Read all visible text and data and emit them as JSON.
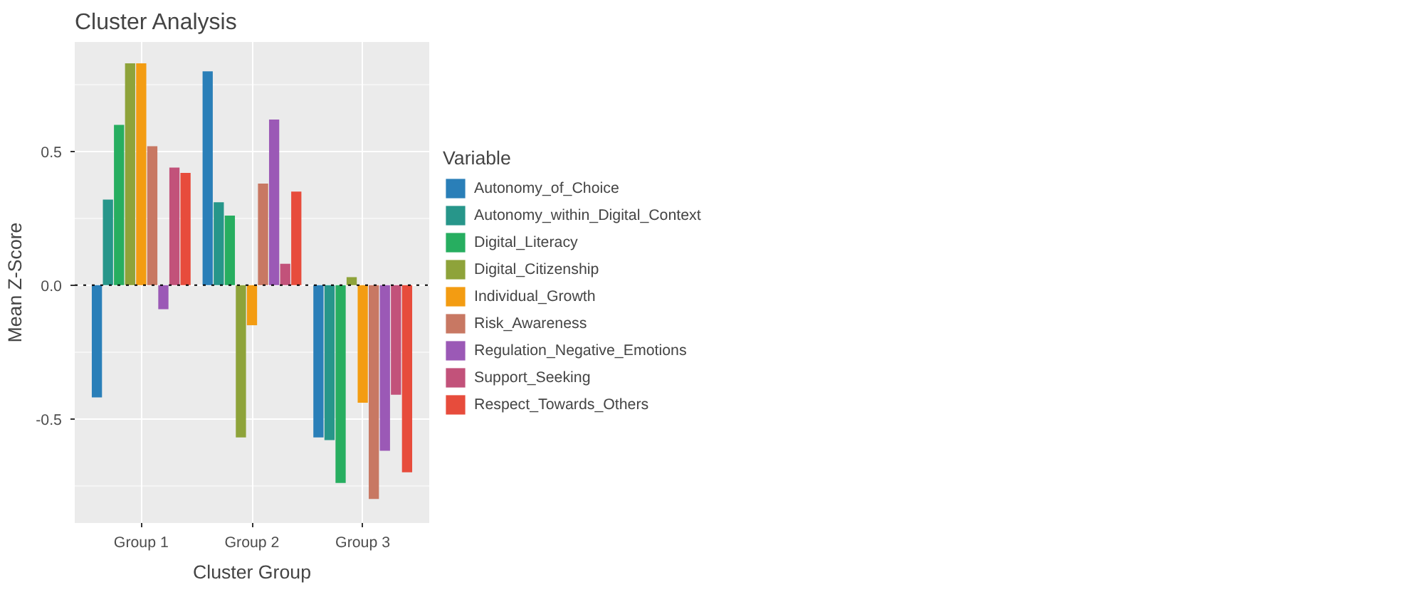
{
  "chart_data": {
    "type": "bar",
    "title": "Cluster Analysis",
    "xlabel": "Cluster Group",
    "ylabel": "Mean Z-Score",
    "legend_title": "Variable",
    "categories": [
      "Group 1",
      "Group 2",
      "Group 3"
    ],
    "series": [
      {
        "name": "Autonomy_of_Choice",
        "color": "#2a7fb8",
        "values": [
          -0.42,
          0.8,
          -0.57
        ]
      },
      {
        "name": "Autonomy_within_Digital_Context",
        "color": "#27968a",
        "values": [
          0.32,
          0.31,
          -0.58
        ]
      },
      {
        "name": "Digital_Literacy",
        "color": "#27ae60",
        "values": [
          0.6,
          0.26,
          -0.74
        ]
      },
      {
        "name": "Digital_Citizenship",
        "color": "#8ea33a",
        "values": [
          0.83,
          -0.57,
          0.03
        ]
      },
      {
        "name": "Individual_Growth",
        "color": "#f39c12",
        "values": [
          0.83,
          -0.15,
          -0.44
        ]
      },
      {
        "name": "Risk_Awareness",
        "color": "#c87863",
        "values": [
          0.52,
          0.38,
          -0.8
        ]
      },
      {
        "name": "Regulation_Negative_Emotions",
        "color": "#9b59b6",
        "values": [
          -0.09,
          0.62,
          -0.62
        ]
      },
      {
        "name": "Support_Seeking",
        "color": "#c2527a",
        "values": [
          0.44,
          0.08,
          -0.41
        ]
      },
      {
        "name": "Respect_Towards_Others",
        "color": "#e74c3c",
        "values": [
          0.42,
          0.35,
          -0.7
        ]
      }
    ],
    "ylim": [
      -0.89,
      0.91
    ],
    "yticks": [
      {
        "value": -0.5,
        "label": "-0.5"
      },
      {
        "value": 0,
        "label": "0.0"
      },
      {
        "value": 0.5,
        "label": "0.5"
      }
    ],
    "grid": true,
    "legend": "right",
    "ref_lines": [
      {
        "axis": "y",
        "value": 0,
        "color": "#000000",
        "line_style": "dotted"
      }
    ]
  }
}
